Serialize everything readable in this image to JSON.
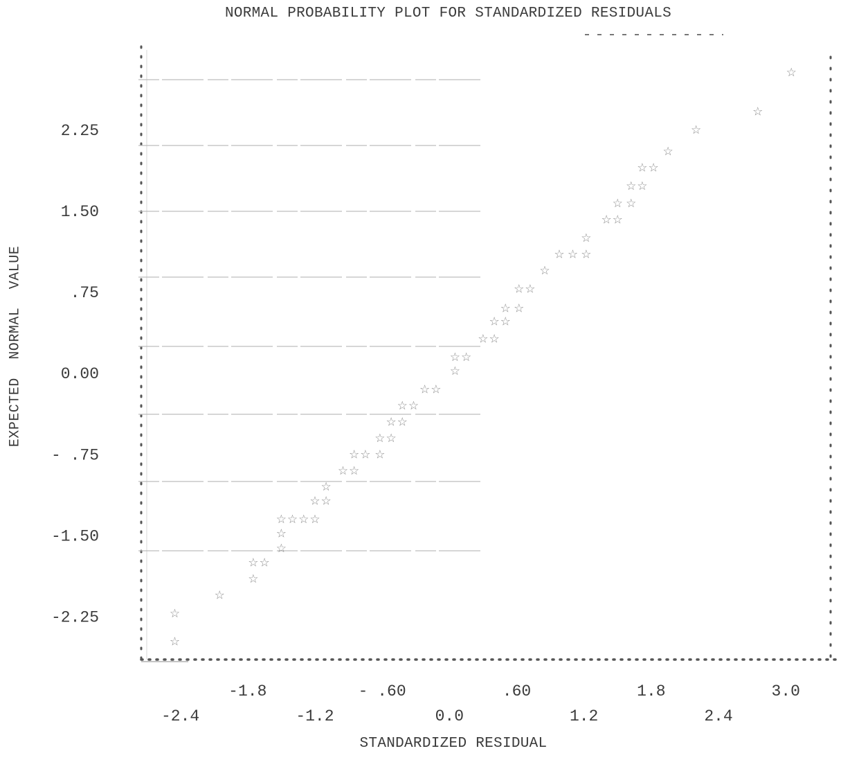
{
  "chart_data": {
    "type": "scatter",
    "title": "NORMAL PROBABILITY PLOT FOR STANDARDIZED RESIDUALS",
    "xlabel": "STANDARDIZED RESIDUAL",
    "ylabel": "EXPECTED NORMAL VALUE",
    "xlim": [
      -2.7,
      3.4
    ],
    "ylim": [
      -2.65,
      3.05
    ],
    "x_ticks_upper": [
      {
        "value": -1.8,
        "label": "-1.8"
      },
      {
        "value": -0.6,
        "label": "- .60"
      },
      {
        "value": 0.6,
        "label": ".60"
      },
      {
        "value": 1.8,
        "label": "1.8"
      },
      {
        "value": 3.0,
        "label": "3.0"
      }
    ],
    "x_ticks_lower": [
      {
        "value": -2.4,
        "label": "-2.4"
      },
      {
        "value": -1.2,
        "label": "-1.2"
      },
      {
        "value": 0.0,
        "label": "0.0"
      },
      {
        "value": 1.2,
        "label": "1.2"
      },
      {
        "value": 2.4,
        "label": "2.4"
      }
    ],
    "y_ticks": [
      {
        "value": 2.25,
        "label": "2.25"
      },
      {
        "value": 1.5,
        "label": "1.50"
      },
      {
        "value": 0.75,
        "label": ".75"
      },
      {
        "value": 0.0,
        "label": "0.00"
      },
      {
        "value": -0.75,
        "label": "- .75"
      },
      {
        "value": -1.5,
        "label": "-1.50"
      },
      {
        "value": -2.25,
        "label": "-2.25"
      }
    ],
    "grid": false,
    "marker": "☆",
    "points": [
      {
        "x": -2.45,
        "y": -2.48
      },
      {
        "x": -2.45,
        "y": -2.22
      },
      {
        "x": -2.05,
        "y": -2.05
      },
      {
        "x": -1.75,
        "y": -1.9
      },
      {
        "x": -1.75,
        "y": -1.75
      },
      {
        "x": -1.65,
        "y": -1.75
      },
      {
        "x": -1.5,
        "y": -1.62
      },
      {
        "x": -1.5,
        "y": -1.48
      },
      {
        "x": -1.5,
        "y": -1.35
      },
      {
        "x": -1.4,
        "y": -1.35
      },
      {
        "x": -1.3,
        "y": -1.35
      },
      {
        "x": -1.2,
        "y": -1.35
      },
      {
        "x": -1.2,
        "y": -1.18
      },
      {
        "x": -1.1,
        "y": -1.18
      },
      {
        "x": -1.1,
        "y": -1.05
      },
      {
        "x": -0.95,
        "y": -0.9
      },
      {
        "x": -0.85,
        "y": -0.9
      },
      {
        "x": -0.85,
        "y": -0.75
      },
      {
        "x": -0.75,
        "y": -0.75
      },
      {
        "x": -0.62,
        "y": -0.75
      },
      {
        "x": -0.62,
        "y": -0.6
      },
      {
        "x": -0.52,
        "y": -0.6
      },
      {
        "x": -0.52,
        "y": -0.45
      },
      {
        "x": -0.42,
        "y": -0.45
      },
      {
        "x": -0.42,
        "y": -0.3
      },
      {
        "x": -0.32,
        "y": -0.3
      },
      {
        "x": -0.22,
        "y": -0.15
      },
      {
        "x": -0.12,
        "y": -0.15
      },
      {
        "x": 0.05,
        "y": 0.02
      },
      {
        "x": 0.05,
        "y": 0.15
      },
      {
        "x": 0.15,
        "y": 0.15
      },
      {
        "x": 0.3,
        "y": 0.32
      },
      {
        "x": 0.4,
        "y": 0.32
      },
      {
        "x": 0.4,
        "y": 0.48
      },
      {
        "x": 0.5,
        "y": 0.48
      },
      {
        "x": 0.5,
        "y": 0.6
      },
      {
        "x": 0.62,
        "y": 0.6
      },
      {
        "x": 0.62,
        "y": 0.78
      },
      {
        "x": 0.72,
        "y": 0.78
      },
      {
        "x": 0.85,
        "y": 0.95
      },
      {
        "x": 0.98,
        "y": 1.1
      },
      {
        "x": 1.1,
        "y": 1.1
      },
      {
        "x": 1.22,
        "y": 1.1
      },
      {
        "x": 1.22,
        "y": 1.25
      },
      {
        "x": 1.4,
        "y": 1.42
      },
      {
        "x": 1.5,
        "y": 1.42
      },
      {
        "x": 1.5,
        "y": 1.57
      },
      {
        "x": 1.62,
        "y": 1.57
      },
      {
        "x": 1.62,
        "y": 1.73
      },
      {
        "x": 1.72,
        "y": 1.73
      },
      {
        "x": 1.72,
        "y": 1.9
      },
      {
        "x": 1.82,
        "y": 1.9
      },
      {
        "x": 1.95,
        "y": 2.05
      },
      {
        "x": 2.2,
        "y": 2.25
      },
      {
        "x": 2.75,
        "y": 2.42
      },
      {
        "x": 3.05,
        "y": 2.78
      }
    ]
  }
}
